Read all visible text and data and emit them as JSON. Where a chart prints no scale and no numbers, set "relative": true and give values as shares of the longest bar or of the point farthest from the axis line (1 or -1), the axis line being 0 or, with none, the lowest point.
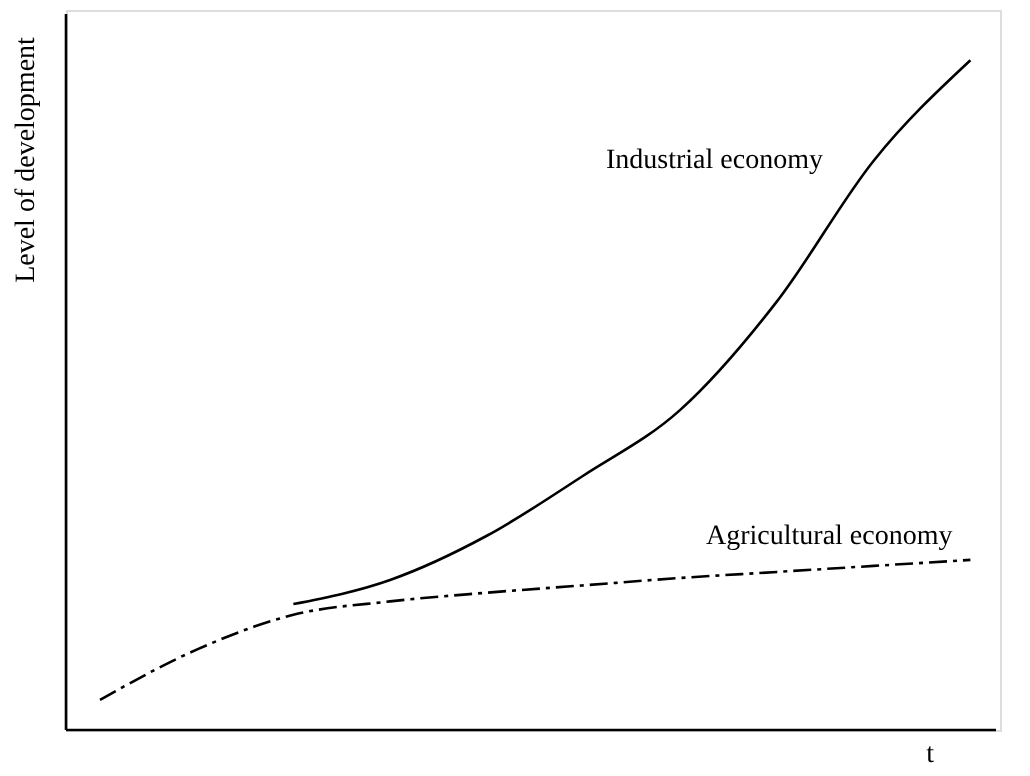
{
  "chart_data": {
    "type": "line",
    "relative": true,
    "xlabel": "t",
    "ylabel": "Level of development",
    "legend": false,
    "categories": [
      null,
      null,
      null,
      null,
      null,
      null,
      null,
      null,
      null,
      null
    ],
    "series": [
      {
        "name": "Industrial economy",
        "color": "#000000",
        "line_style": "solid",
        "values": [
          null,
          null,
          0.188,
          0.224,
          0.29,
          0.38,
          0.478,
          0.64,
          0.85,
          1.0
        ]
      },
      {
        "name": "Agricultural economy",
        "color": "#000000",
        "line_style": "dashed",
        "values": [
          0.045,
          0.12,
          0.172,
          0.192,
          0.205,
          0.216,
          0.227,
          0.236,
          0.245,
          0.254
        ]
      }
    ]
  }
}
